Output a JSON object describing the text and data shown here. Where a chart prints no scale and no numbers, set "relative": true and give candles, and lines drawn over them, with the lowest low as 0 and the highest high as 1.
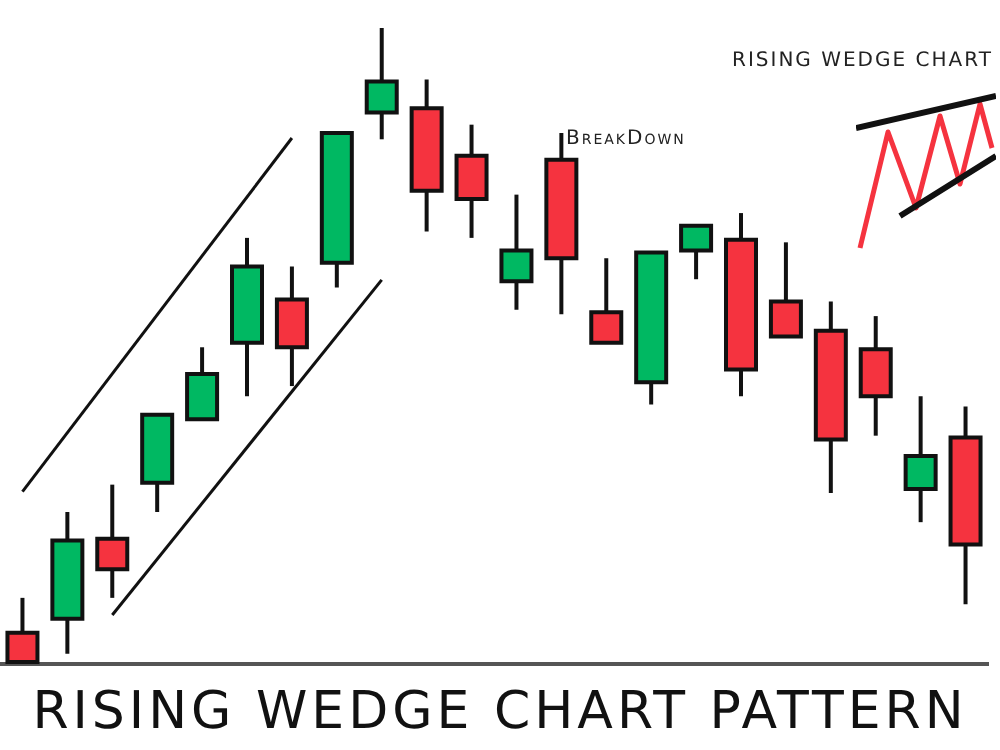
{
  "chart_data": {
    "type": "candlestick",
    "relative": true,
    "title": "RISING WEDGE CHART PATTERN",
    "annotations": [
      "BreakDown",
      "RISING WEDGE CHART"
    ],
    "categories": [
      null,
      null,
      null,
      null,
      null,
      null,
      null,
      null,
      null,
      null,
      null,
      null,
      null,
      null,
      null,
      null,
      null,
      null,
      null,
      null,
      null,
      null
    ],
    "ohlc": [
      [
        0.049,
        0.104,
        0,
        0.003
      ],
      [
        0.071,
        0.239,
        0.016,
        0.194
      ],
      [
        0.197,
        0.282,
        0.104,
        0.149
      ],
      [
        0.285,
        0.392,
        0.239,
        0.392
      ],
      [
        0.385,
        0.498,
        0.385,
        0.456
      ],
      [
        0.505,
        0.67,
        0.421,
        0.625
      ],
      [
        0.573,
        0.625,
        0.437,
        0.498
      ],
      [
        0.631,
        0.835,
        0.592,
        0.835
      ],
      [
        0.867,
        1,
        0.825,
        0.916
      ],
      [
        0.874,
        0.919,
        0.68,
        0.744
      ],
      [
        0.799,
        0.848,
        0.67,
        0.731
      ],
      [
        0.602,
        0.738,
        0.557,
        0.65
      ],
      [
        0.793,
        0.835,
        0.55,
        0.638
      ],
      [
        0.553,
        0.638,
        0.505,
        0.505
      ],
      [
        0.443,
        0.647,
        0.408,
        0.647
      ],
      [
        0.65,
        0.689,
        0.605,
        0.689
      ],
      [
        0.667,
        0.709,
        0.421,
        0.463
      ],
      [
        0.57,
        0.663,
        0.515,
        0.515
      ],
      [
        0.524,
        0.57,
        0.269,
        0.353
      ],
      [
        0.495,
        0.547,
        0.359,
        0.421
      ],
      [
        0.275,
        0.421,
        0.223,
        0.327
      ],
      [
        0.356,
        0.405,
        0.094,
        0.188
      ]
    ],
    "colors": [
      "#f5333f",
      "#00b862",
      "#f5333f",
      "#00b862",
      "#00b862",
      "#00b862",
      "#f5333f",
      "#00b862",
      "#00b862",
      "#f5333f",
      "#f5333f",
      "#00b862",
      "#f5333f",
      "#f5333f",
      "#00b862",
      "#00b862",
      "#f5333f",
      "#f5333f",
      "#f5333f",
      "#f5333f",
      "#00b862",
      "#f5333f"
    ],
    "series": [
      {
        "type": "line",
        "color": "#111111",
        "values": [
          0.271,
          null,
          null,
          null,
          null,
          null,
          0.827,
          null,
          null,
          null,
          null,
          null,
          null,
          null,
          null,
          null,
          null,
          null,
          null,
          null,
          null,
          null
        ]
      },
      {
        "type": "line",
        "color": "#111111",
        "values": [
          null,
          null,
          0.077,
          null,
          null,
          null,
          null,
          null,
          0.604,
          null,
          null,
          null,
          null,
          null,
          null,
          null,
          null,
          null,
          null,
          null,
          null,
          null
        ]
      }
    ]
  }
}
